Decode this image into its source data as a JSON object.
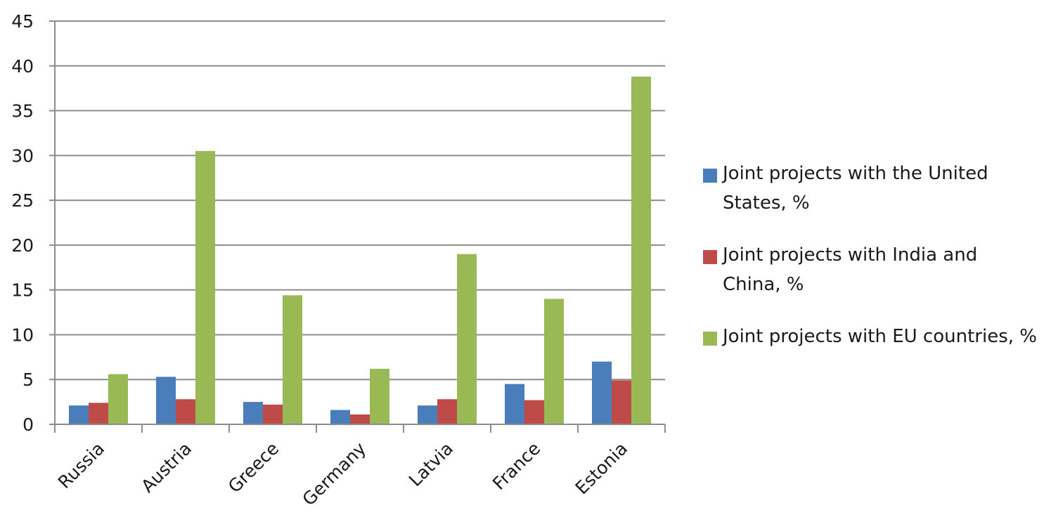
{
  "chart_data": {
    "type": "bar",
    "categories": [
      "Russia",
      "Austria",
      "Greece",
      "Germany",
      "Latvia",
      "France",
      "Estonia"
    ],
    "series": [
      {
        "name": "Joint projects with the United States, %",
        "color": "#4a7ebb",
        "values": [
          2.1,
          5.3,
          2.5,
          1.6,
          2.1,
          4.5,
          7.0
        ]
      },
      {
        "name": "Joint projects with India and China, %",
        "color": "#be4b48",
        "values": [
          2.4,
          2.8,
          2.2,
          1.1,
          2.8,
          2.7,
          4.9
        ]
      },
      {
        "name": "Joint projects with EU countries, %",
        "color": "#98b954",
        "values": [
          5.6,
          30.5,
          14.4,
          6.2,
          19.0,
          14.0,
          38.8
        ]
      }
    ],
    "yticks": [
      "0",
      "5",
      "10",
      "15",
      "20",
      "25",
      "30",
      "35",
      "40",
      "45"
    ],
    "ylim": [
      0,
      45
    ],
    "grid": true,
    "legend_position": "right"
  }
}
